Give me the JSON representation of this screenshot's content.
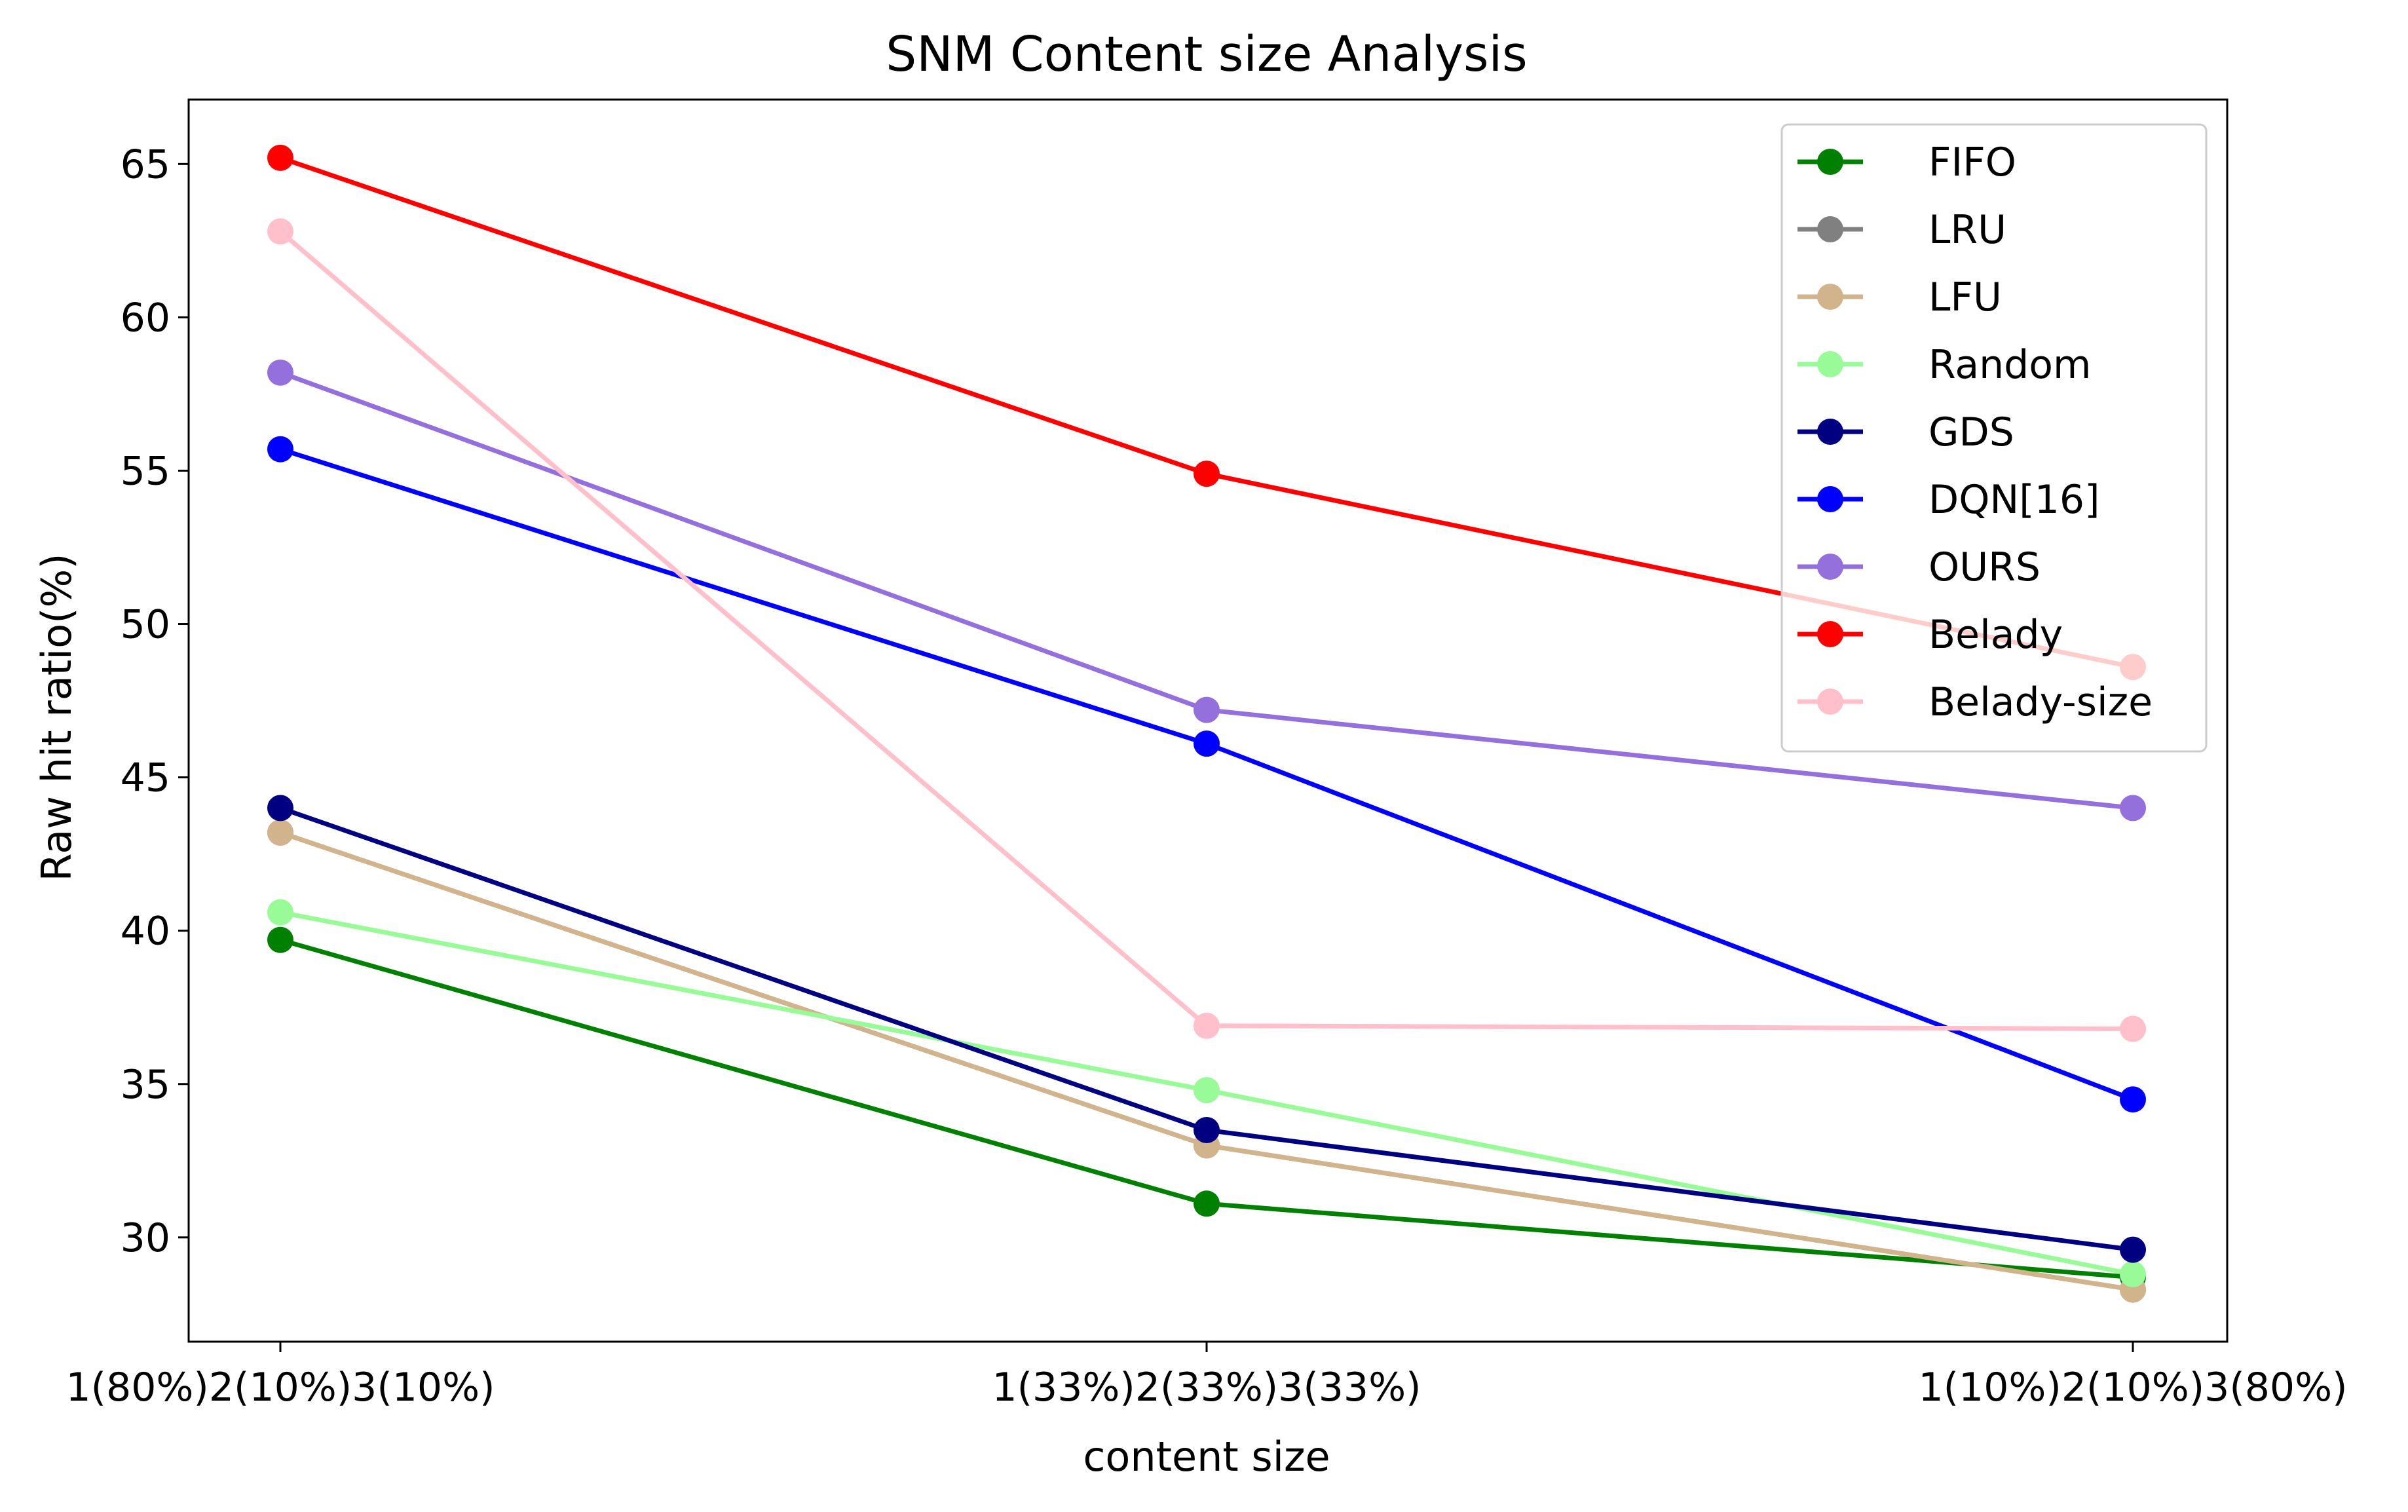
{
  "chart_data": {
    "type": "line",
    "title": "SNM Content size Analysis",
    "xlabel": "content size",
    "ylabel": "Raw hit ratio(%)",
    "categories": [
      "1(80%)2(10%)3(10%)",
      "1(33%)2(33%)3(33%)",
      "1(10%)2(10%)3(80%)"
    ],
    "ylim": [
      26.6,
      67.1
    ],
    "yticks": [
      30,
      35,
      40,
      45,
      50,
      55,
      60,
      65
    ],
    "grid": false,
    "legend_position": "top-right",
    "series": [
      {
        "name": "FIFO",
        "color": "#008000",
        "values": [
          39.7,
          31.1,
          28.7
        ]
      },
      {
        "name": "LRU",
        "color": "#808080",
        "values": [
          43.2,
          33.0,
          28.3
        ]
      },
      {
        "name": "LFU",
        "color": "#d2b48c",
        "values": [
          43.2,
          33.0,
          28.3
        ]
      },
      {
        "name": "Random",
        "color": "#98fb98",
        "values": [
          40.6,
          34.8,
          28.8
        ]
      },
      {
        "name": "GDS",
        "color": "#000080",
        "values": [
          44.0,
          33.5,
          29.6
        ]
      },
      {
        "name": "DQN[16]",
        "color": "#0000ff",
        "values": [
          55.7,
          46.1,
          34.5
        ]
      },
      {
        "name": "OURS",
        "color": "#9370db",
        "values": [
          58.2,
          47.2,
          44.0
        ]
      },
      {
        "name": "Belady",
        "color": "#ff0000",
        "values": [
          65.2,
          54.9,
          48.6
        ]
      },
      {
        "name": "Belady-size",
        "color": "#ffc0cb",
        "values": [
          62.8,
          36.9,
          36.8
        ]
      }
    ]
  }
}
